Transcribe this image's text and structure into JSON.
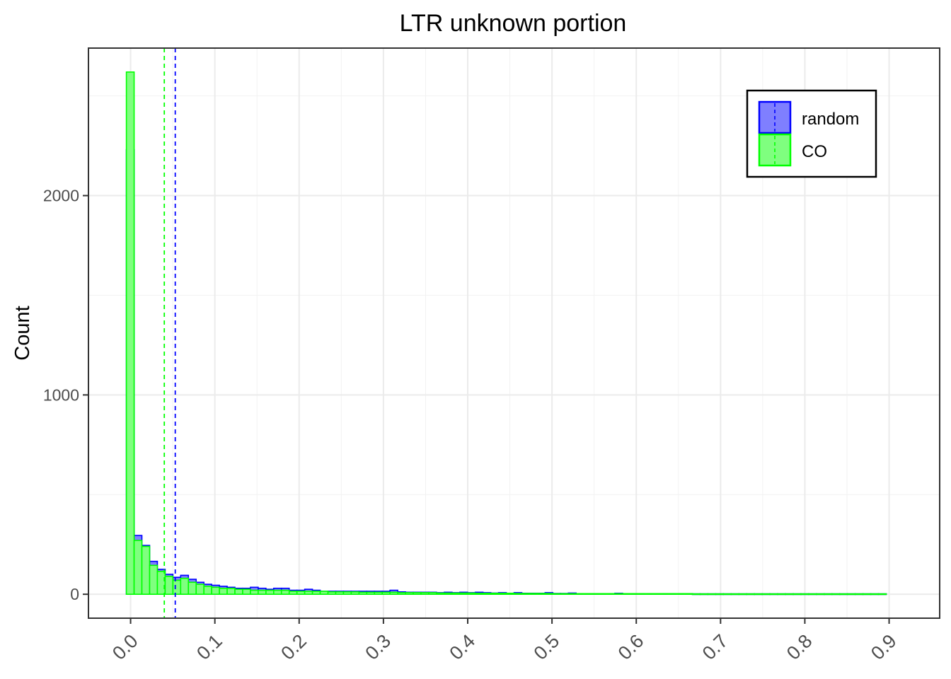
{
  "chart_data": {
    "type": "histogram",
    "title": "LTR unknown portion",
    "xlabel": "",
    "ylabel": "Count",
    "xlim": [
      -0.05,
      0.96
    ],
    "ylim": [
      -120,
      2740
    ],
    "x_ticks": [
      0.0,
      0.1,
      0.2,
      0.3,
      0.4,
      0.5,
      0.6,
      0.7,
      0.8,
      0.9
    ],
    "x_tick_labels": [
      "0.0",
      "0.1",
      "0.2",
      "0.3",
      "0.4",
      "0.5",
      "0.6",
      "0.7",
      "0.8",
      "0.9"
    ],
    "y_ticks": [
      0,
      1000,
      2000
    ],
    "y_tick_labels": [
      "0",
      "1000",
      "2000"
    ],
    "grid": true,
    "legend": {
      "placement": "top-right",
      "entries": [
        "random",
        "CO"
      ]
    },
    "bin_start": -0.005,
    "bin_width": 0.0092,
    "series": [
      {
        "name": "random",
        "fill": "#7f7fff",
        "stroke": "#0000ff",
        "mean_line": 0.053,
        "values": [
          2230,
          295,
          245,
          165,
          125,
          100,
          85,
          95,
          75,
          60,
          50,
          45,
          40,
          35,
          30,
          30,
          35,
          30,
          25,
          30,
          30,
          20,
          20,
          25,
          20,
          15,
          15,
          15,
          15,
          15,
          15,
          15,
          15,
          15,
          20,
          12,
          10,
          10,
          10,
          10,
          8,
          10,
          8,
          10,
          8,
          10,
          8,
          6,
          8,
          5,
          8,
          5,
          5,
          5,
          8,
          4,
          4,
          6,
          3,
          3,
          3,
          3,
          3,
          5,
          3,
          3,
          3,
          3,
          3,
          3,
          3,
          3,
          3,
          2,
          2,
          2,
          2,
          2,
          2,
          2,
          2,
          2,
          2,
          2,
          2,
          2,
          2,
          2,
          2,
          2,
          2,
          2,
          2,
          2,
          2,
          2,
          2,
          2
        ]
      },
      {
        "name": "CO",
        "fill": "#7fff7f",
        "stroke": "#00ff00",
        "mean_line": 0.04,
        "values": [
          2620,
          270,
          240,
          145,
          115,
          90,
          70,
          80,
          60,
          50,
          40,
          35,
          30,
          30,
          25,
          25,
          20,
          20,
          20,
          20,
          20,
          15,
          15,
          15,
          15,
          15,
          12,
          12,
          12,
          12,
          10,
          10,
          10,
          10,
          10,
          8,
          8,
          8,
          8,
          8,
          6,
          6,
          6,
          6,
          6,
          5,
          5,
          5,
          5,
          5,
          4,
          4,
          4,
          4,
          4,
          3,
          3,
          3,
          3,
          3,
          3,
          3,
          3,
          3,
          3,
          3,
          3,
          3,
          3,
          3,
          3,
          3,
          3,
          2,
          2,
          2,
          2,
          2,
          2,
          2,
          2,
          2,
          2,
          2,
          2,
          2,
          2,
          2,
          2,
          2,
          2,
          2,
          2,
          2,
          2,
          2,
          2,
          2
        ]
      }
    ]
  }
}
